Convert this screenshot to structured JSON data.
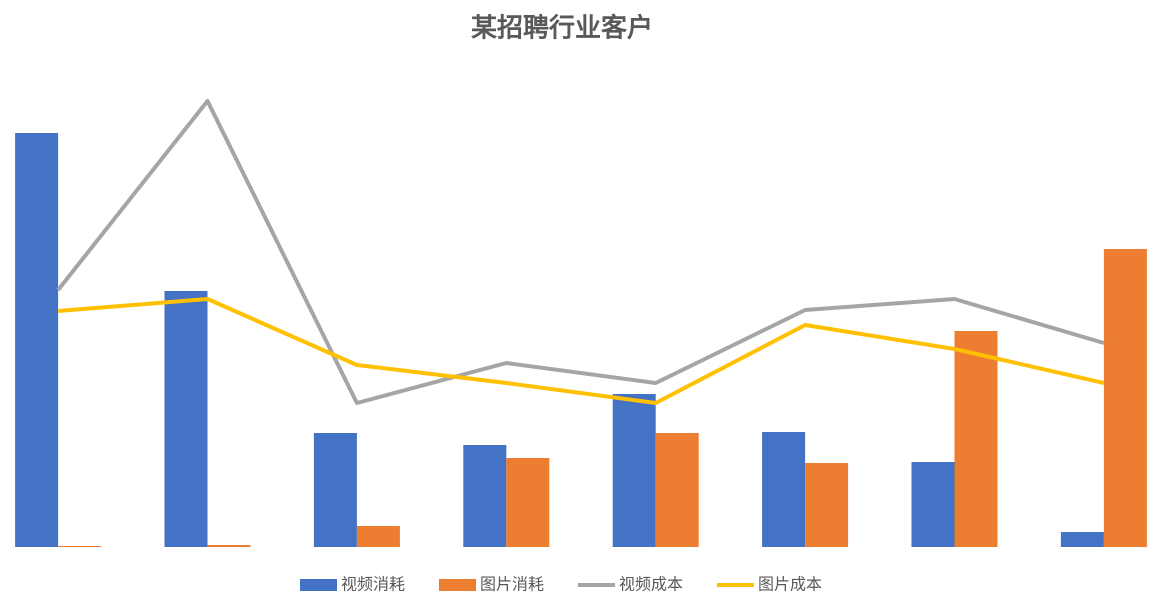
{
  "chart_data": {
    "type": "bar",
    "title": "某招聘行业客户",
    "categories": [
      null,
      null,
      null,
      null,
      null,
      null,
      null,
      null
    ],
    "series": [
      {
        "name": "视频消耗",
        "color": "#4472c4",
        "type": "bar",
        "values": [
          414,
          256,
          114,
          102,
          153,
          115,
          85,
          15
        ]
      },
      {
        "name": "图片消耗",
        "color": "#ed7d31",
        "type": "bar",
        "values": [
          1,
          2,
          21,
          89,
          114,
          84,
          216,
          298
        ]
      },
      {
        "name": "视频成本",
        "color": "#a5a5a5",
        "type": "line",
        "values": [
          257,
          446,
          144,
          184,
          164,
          237,
          248,
          204
        ]
      },
      {
        "name": "图片成本",
        "color": "#ffc000",
        "type": "line",
        "values": [
          236,
          248,
          182,
          164,
          144,
          222,
          198,
          164
        ]
      }
    ],
    "legend": "bottom"
  }
}
